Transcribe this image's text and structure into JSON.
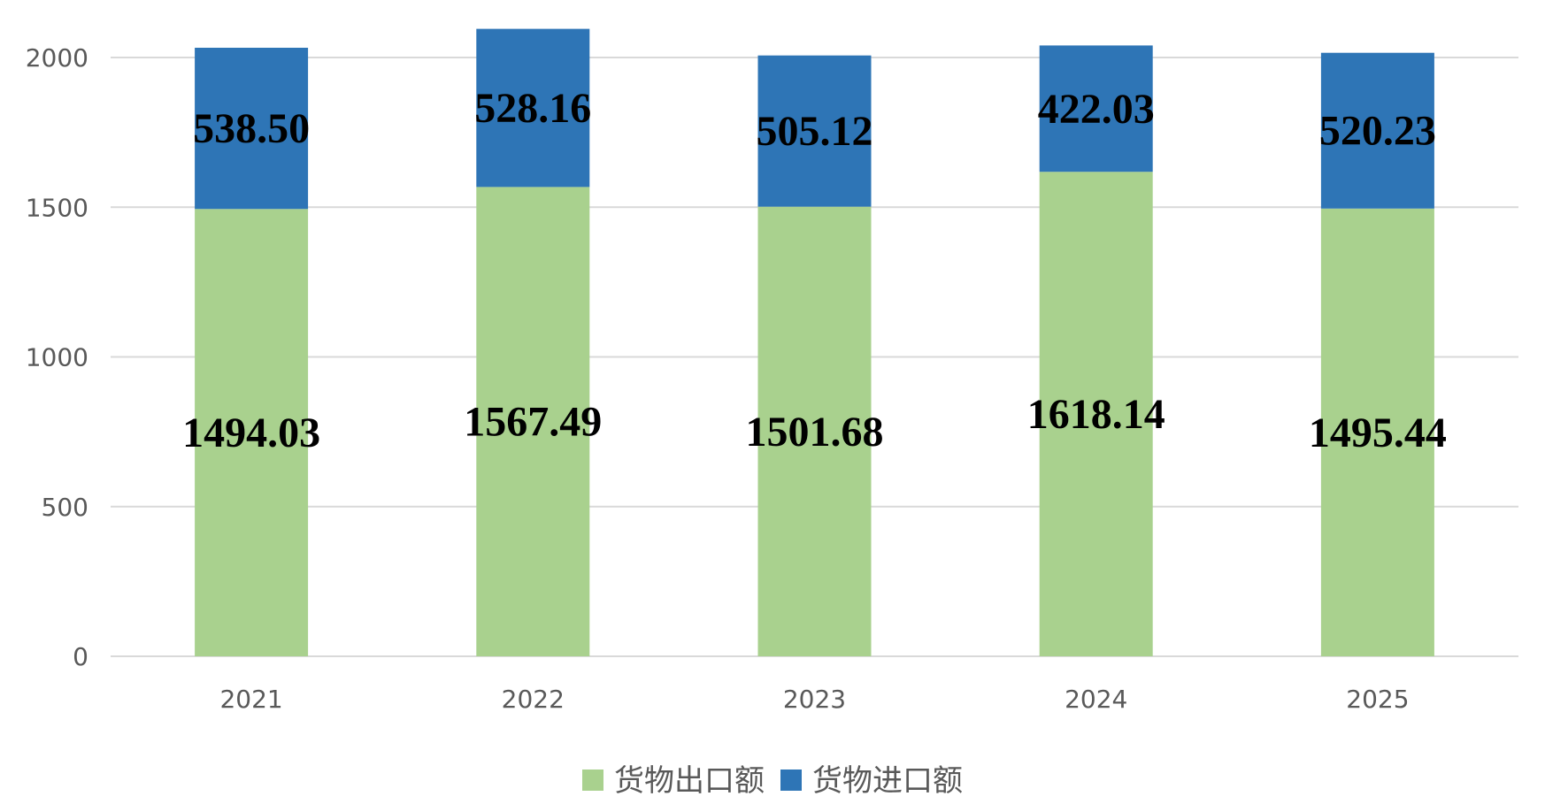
{
  "chart_data": {
    "type": "bar",
    "stacked": true,
    "title": "",
    "xlabel": "",
    "ylabel": "",
    "categories": [
      "2021",
      "2022",
      "2023",
      "2024",
      "2025"
    ],
    "ylim": [
      0,
      2000
    ],
    "yticks": [
      0,
      500,
      1000,
      1500,
      2000
    ],
    "grid": true,
    "legend_position": "bottom",
    "series": [
      {
        "name": "货物出口额",
        "color": "#a9d18e",
        "values": [
          1494.03,
          1567.49,
          1501.68,
          1618.14,
          1495.44
        ],
        "labels": [
          "1494.03",
          "1567.49",
          "1501.68",
          "1618.14",
          "1495.44"
        ]
      },
      {
        "name": "货物进口额",
        "color": "#2e75b6",
        "values": [
          538.5,
          528.16,
          505.12,
          422.03,
          520.23
        ],
        "labels": [
          "538.50",
          "528.16",
          "505.12",
          "422.03",
          "520.23"
        ]
      }
    ]
  }
}
